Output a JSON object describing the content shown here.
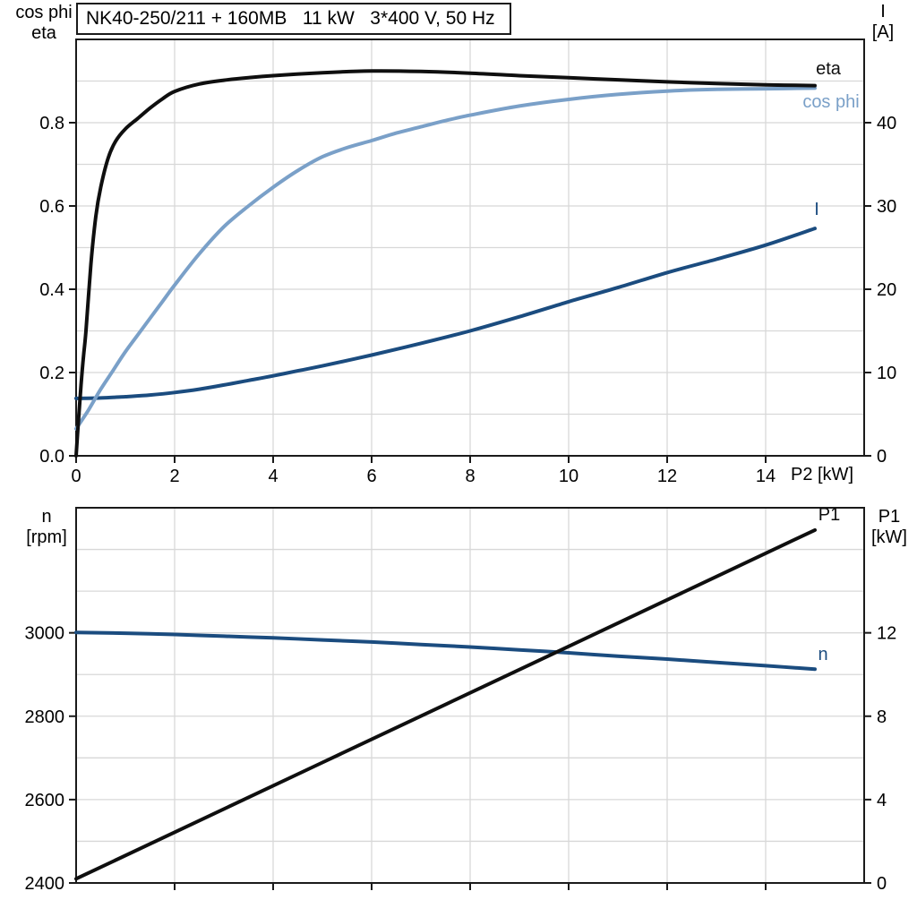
{
  "colors": {
    "black": "#0f0f0f",
    "light_blue": "#7aa0c8",
    "dark_blue": "#1b4c7f",
    "grid": "#d8d8d8",
    "frame": "#1a1a1a"
  },
  "title_box": {
    "text": "NK40-250/211 + 160MB   11 kW   3*400 V, 50 Hz"
  },
  "axis_titles": {
    "top_left": [
      "cos phi",
      "eta"
    ],
    "top_right": [
      "I",
      "[A]"
    ],
    "bottom_left": [
      "n",
      "[rpm]"
    ],
    "bottom_right": [
      "P1",
      "[kW]"
    ]
  },
  "chart_data": [
    {
      "type": "line",
      "title": "NK40-250/211 + 160MB   11 kW   3*400 V, 50 Hz",
      "xlabel": "P2 [kW]",
      "xlim": [
        0,
        16
      ],
      "y_left": {
        "label": "cos phi / eta",
        "lim": [
          0,
          1.0
        ]
      },
      "y_right": {
        "label": "I [A]",
        "lim": [
          0,
          50
        ]
      },
      "grid": "on",
      "axes": {
        "x_ticks": {
          "values": [
            0,
            2,
            4,
            6,
            8,
            10,
            12,
            14
          ],
          "labels": [
            "0",
            "2",
            "4",
            "6",
            "8",
            "10",
            "12",
            "14"
          ]
        },
        "left_ticks": {
          "values": [
            0,
            0.2,
            0.4,
            0.6,
            0.8
          ],
          "labels": [
            "0.0",
            "0.2",
            "0.4",
            "0.6",
            "0.8"
          ]
        },
        "right_ticks": {
          "values": [
            0,
            10,
            20,
            30,
            40
          ],
          "labels": [
            "0",
            "10",
            "20",
            "30",
            "40"
          ]
        },
        "grid_x": [
          2,
          4,
          6,
          8,
          10,
          12,
          14
        ],
        "grid_y_left": [
          0.1,
          0.2,
          0.3,
          0.4,
          0.5,
          0.6,
          0.7,
          0.8,
          0.9
        ]
      },
      "series": [
        {
          "name": "I",
          "axis": "right",
          "color": "dark_blue",
          "x": [
            0,
            0.5,
            1,
            1.5,
            2,
            2.5,
            3,
            3.5,
            4,
            4.5,
            5,
            6,
            7,
            8,
            9,
            10,
            11,
            12,
            13,
            14,
            15
          ],
          "y": [
            6.9,
            6.95,
            7.1,
            7.3,
            7.6,
            8.0,
            8.5,
            9.05,
            9.6,
            10.2,
            10.8,
            12.1,
            13.5,
            15.0,
            16.7,
            18.5,
            20.2,
            22.0,
            23.6,
            25.3,
            27.3
          ]
        },
        {
          "name": "cos phi",
          "axis": "left",
          "color": "light_blue",
          "x": [
            0,
            0.25,
            0.5,
            0.75,
            1,
            1.25,
            1.5,
            1.75,
            2,
            2.5,
            3,
            3.5,
            4,
            4.5,
            5,
            5.5,
            6,
            6.5,
            7,
            7.5,
            8,
            9,
            10,
            11,
            12,
            13,
            14,
            15
          ],
          "y": [
            0.065,
            0.11,
            0.16,
            0.205,
            0.25,
            0.29,
            0.33,
            0.37,
            0.41,
            0.485,
            0.55,
            0.6,
            0.645,
            0.685,
            0.718,
            0.74,
            0.757,
            0.775,
            0.79,
            0.805,
            0.818,
            0.84,
            0.856,
            0.868,
            0.876,
            0.88,
            0.8815,
            0.883
          ]
        },
        {
          "name": "eta",
          "axis": "left",
          "color": "black",
          "x": [
            0,
            0.05,
            0.1,
            0.15,
            0.2,
            0.3,
            0.4,
            0.5,
            0.65,
            0.8,
            1,
            1.25,
            1.5,
            1.75,
            2,
            2.5,
            3,
            3.5,
            4,
            5,
            6,
            7,
            8,
            9,
            10,
            11,
            12,
            13,
            14,
            15
          ],
          "y": [
            0,
            0.09,
            0.17,
            0.24,
            0.3,
            0.46,
            0.575,
            0.645,
            0.715,
            0.755,
            0.785,
            0.81,
            0.835,
            0.857,
            0.875,
            0.893,
            0.902,
            0.908,
            0.913,
            0.92,
            0.924,
            0.923,
            0.919,
            0.913,
            0.908,
            0.903,
            0.898,
            0.894,
            0.891,
            0.889
          ]
        }
      ]
    },
    {
      "type": "line",
      "xlabel": "",
      "xlim": [
        0,
        16
      ],
      "y_left": {
        "label": "n [rpm]",
        "lim": [
          2400,
          3300
        ]
      },
      "y_right": {
        "label": "P1 [kW]",
        "lim": [
          0,
          18
        ]
      },
      "grid": "on",
      "axes": {
        "x_ticks": {
          "values": [
            2,
            4,
            6,
            8,
            10,
            12,
            14
          ],
          "labels": [
            "",
            "",
            "",
            "",
            "",
            "",
            ""
          ]
        },
        "left_ticks": {
          "values": [
            2400,
            2600,
            2800,
            3000
          ],
          "labels": [
            "2400",
            "2600",
            "2800",
            "3000"
          ]
        },
        "right_ticks": {
          "values": [
            0,
            4,
            8,
            12
          ],
          "labels": [
            "0",
            "4",
            "8",
            "12"
          ]
        },
        "grid_x": [
          2,
          4,
          6,
          8,
          10,
          12,
          14
        ],
        "grid_y_left": [
          2500,
          2600,
          2700,
          2800,
          2900,
          3000,
          3100,
          3200
        ]
      },
      "series": [
        {
          "name": "n",
          "axis": "left",
          "color": "dark_blue",
          "x": [
            0,
            1,
            2,
            3,
            4,
            5,
            6,
            7,
            8,
            9,
            10,
            11,
            12,
            13,
            14,
            15
          ],
          "y": [
            3001,
            2999,
            2996,
            2992,
            2988,
            2983,
            2978,
            2972,
            2966,
            2959,
            2952,
            2944,
            2937,
            2929,
            2921,
            2913
          ]
        },
        {
          "name": "P1",
          "axis": "right",
          "color": "black",
          "x": [
            0,
            5,
            10,
            15
          ],
          "y": [
            0.2,
            5.78,
            11.35,
            16.93
          ]
        }
      ]
    }
  ]
}
